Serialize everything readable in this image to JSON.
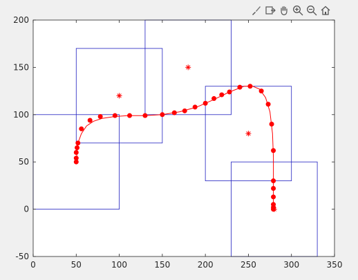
{
  "toolbar": {
    "icons": [
      "brush-icon",
      "export-icon",
      "pan-hand-icon",
      "zoom-in-icon",
      "zoom-out-icon",
      "home-icon"
    ]
  },
  "chart_data": {
    "type": "scatter",
    "xlim": [
      0,
      350
    ],
    "ylim": [
      -50,
      200
    ],
    "xticks": [
      0,
      50,
      100,
      150,
      200,
      250,
      300,
      350
    ],
    "yticks": [
      -50,
      0,
      50,
      100,
      150,
      200
    ],
    "grid": false,
    "colors": {
      "boxes": "#2020c0",
      "path": "#ff0000",
      "axes": "#262626"
    },
    "rectangles": [
      {
        "x": 0,
        "y": 0,
        "w": 100,
        "h": 100
      },
      {
        "x": 50,
        "y": 70,
        "w": 100,
        "h": 100
      },
      {
        "x": 130,
        "y": 100,
        "w": 100,
        "h": 100
      },
      {
        "x": 200,
        "y": 30,
        "w": 100,
        "h": 100
      },
      {
        "x": 230,
        "y": -50,
        "w": 100,
        "h": 100
      }
    ],
    "star_markers": [
      {
        "x": 100,
        "y": 120
      },
      {
        "x": 180,
        "y": 150
      },
      {
        "x": 250,
        "y": 80
      },
      {
        "x": 280,
        "y": 0
      }
    ],
    "path_points": [
      [
        50,
        50
      ],
      [
        50,
        54
      ],
      [
        50,
        60
      ],
      [
        51,
        65
      ],
      [
        52,
        70
      ],
      [
        56,
        85
      ],
      [
        66,
        94
      ],
      [
        78,
        98
      ],
      [
        95,
        99
      ],
      [
        112,
        99
      ],
      [
        130,
        99
      ],
      [
        150,
        100
      ],
      [
        164,
        102
      ],
      [
        176,
        104
      ],
      [
        188,
        108
      ],
      [
        200,
        112
      ],
      [
        210,
        117
      ],
      [
        219,
        121
      ],
      [
        228,
        124
      ],
      [
        240,
        129
      ],
      [
        252,
        130
      ],
      [
        265,
        125
      ],
      [
        273,
        111
      ],
      [
        277,
        90
      ],
      [
        279,
        62
      ],
      [
        279,
        30
      ],
      [
        279,
        22
      ],
      [
        279,
        13
      ],
      [
        279,
        5
      ],
      [
        279,
        2
      ],
      [
        279,
        0
      ]
    ],
    "curve": [
      [
        50,
        50
      ],
      [
        51,
        60
      ],
      [
        52,
        70
      ],
      [
        56,
        80
      ],
      [
        62,
        88
      ],
      [
        70,
        93
      ],
      [
        80,
        96
      ],
      [
        95,
        98
      ],
      [
        110,
        99
      ],
      [
        130,
        99
      ],
      [
        150,
        100
      ],
      [
        170,
        103
      ],
      [
        190,
        108
      ],
      [
        210,
        116
      ],
      [
        228,
        124
      ],
      [
        245,
        130
      ],
      [
        255,
        130
      ],
      [
        263,
        127
      ],
      [
        270,
        118
      ],
      [
        275,
        103
      ],
      [
        278,
        80
      ],
      [
        279,
        55
      ],
      [
        279,
        30
      ],
      [
        279,
        0
      ]
    ]
  }
}
